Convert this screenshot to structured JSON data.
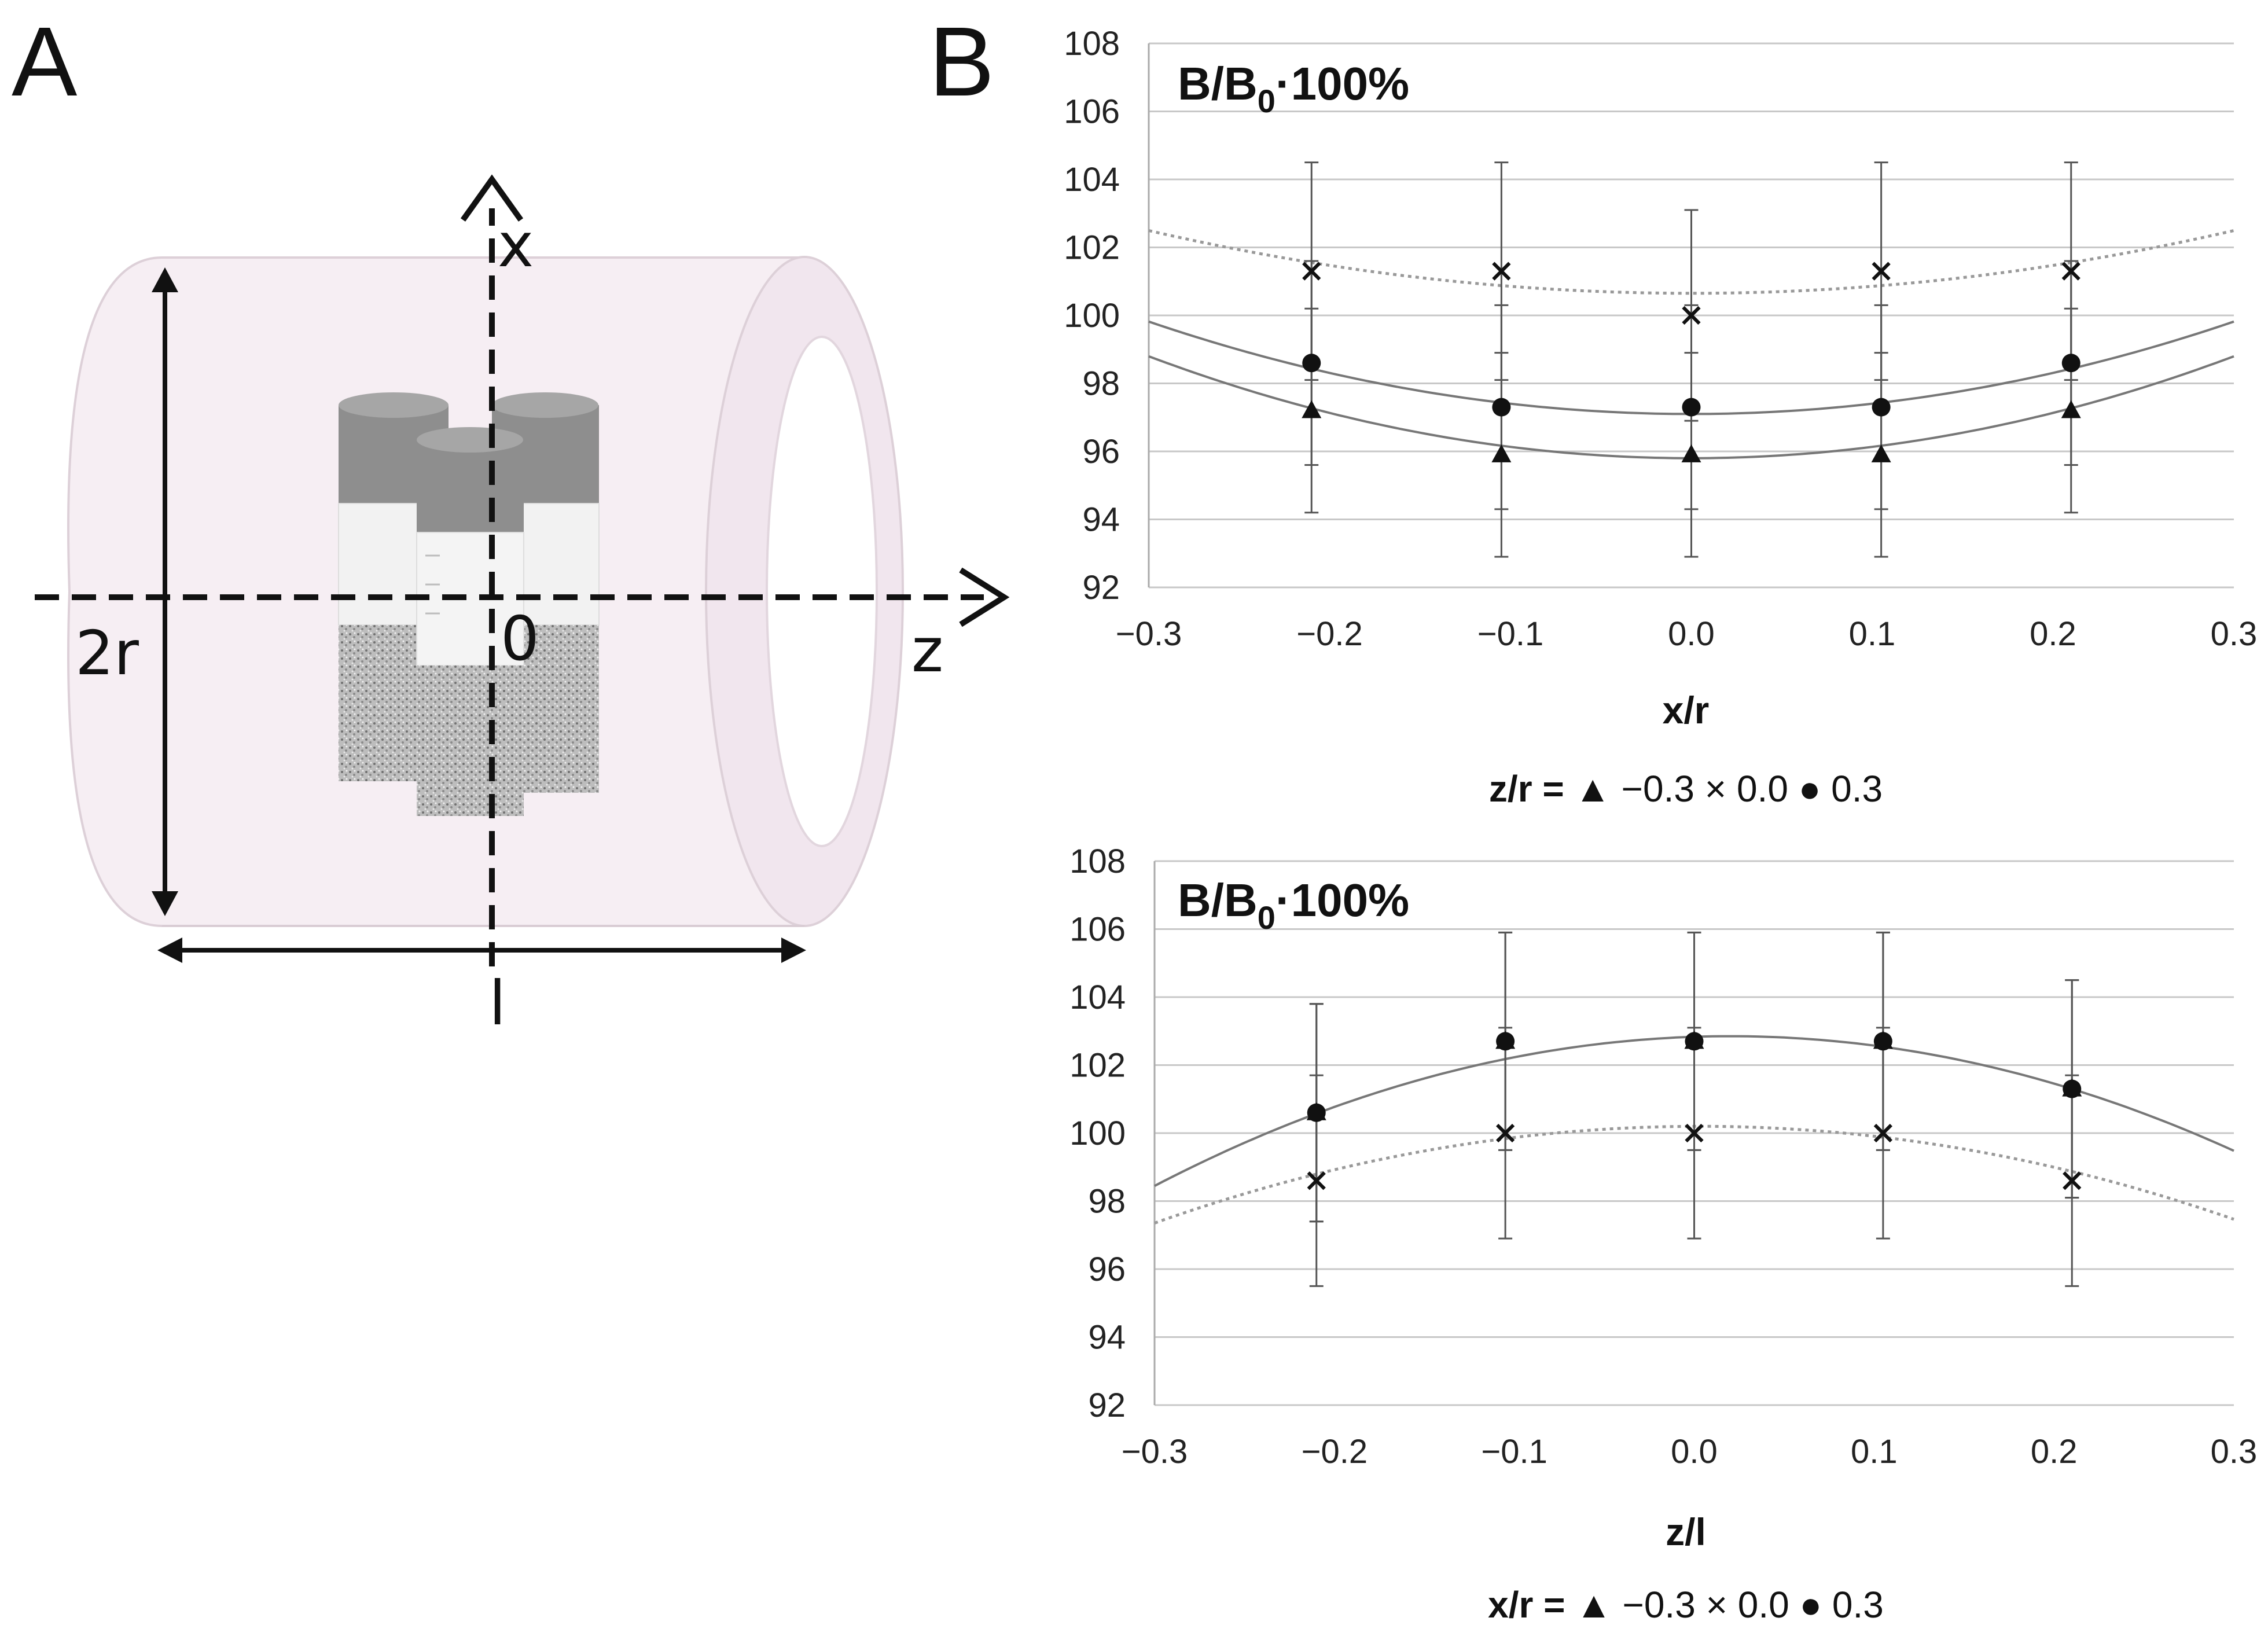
{
  "panels": {
    "a": {
      "letter": "A",
      "diagram": {
        "axis_x_label": "x",
        "axis_z_label": "z",
        "diameter_label": "2r",
        "origin_label": "0",
        "length_label": "l"
      }
    },
    "b": {
      "letter": "B"
    }
  },
  "colors": {
    "cylinder_fill": "#f6eef3",
    "cylinder_stroke": "#ddd0d8",
    "grid": "#c8c8c8",
    "axis": "#aaaaaa",
    "fit_solid": "#777777",
    "fit_dotted": "#999999",
    "marker": "#111111",
    "errorbar": "#555555"
  },
  "chart_data": [
    {
      "type": "scatter",
      "title": "",
      "ylabel_main": "B/B",
      "ylabel_sub": "0",
      "ylabel_suffix": "·100%",
      "xlabel": "x/r",
      "xlim": [
        -0.3,
        0.3
      ],
      "ylim": [
        92,
        108
      ],
      "y_ticks": [
        92,
        94,
        96,
        98,
        100,
        102,
        104,
        106,
        108
      ],
      "x_ticks": [
        "−0.3",
        "−0.2",
        "−0.1",
        "0.0",
        "0.1",
        "0.2",
        "0.3"
      ],
      "x_tick_values": [
        -0.3,
        -0.2,
        -0.1,
        0.0,
        0.1,
        0.2,
        0.3
      ],
      "grid": "horizontal",
      "legend_prefix": "z/r = ",
      "legend": [
        {
          "symbol": "▲",
          "label": "−0.3"
        },
        {
          "symbol": "×",
          "label": "0.0"
        },
        {
          "symbol": "●",
          "label": "0.3"
        }
      ],
      "series": [
        {
          "name": "−0.3",
          "marker": "triangle",
          "x": [
            -0.21,
            -0.105,
            0.0,
            0.105,
            0.21
          ],
          "y": [
            97.2,
            95.9,
            95.9,
            95.9,
            97.2
          ],
          "err": [
            3.0,
            3.0,
            3.0,
            3.0,
            3.0
          ],
          "fit": {
            "a": 33.3,
            "b": 0.0,
            "c": 95.8,
            "style": "solid"
          }
        },
        {
          "name": "0.0",
          "marker": "x",
          "x": [
            -0.21,
            -0.105,
            0.0,
            0.105,
            0.21
          ],
          "y": [
            101.3,
            101.3,
            100.0,
            101.3,
            101.3
          ],
          "err": [
            3.2,
            3.2,
            3.1,
            3.2,
            3.2
          ],
          "fit": {
            "a": 20.5,
            "b": 0.0,
            "c": 100.65,
            "style": "dotted"
          }
        },
        {
          "name": "0.3",
          "marker": "circle",
          "x": [
            -0.21,
            -0.105,
            0.0,
            0.105,
            0.21
          ],
          "y": [
            98.6,
            97.3,
            97.3,
            97.3,
            98.6
          ],
          "err": [
            3.0,
            3.0,
            3.0,
            3.0,
            3.0
          ],
          "fit": {
            "a": 30.2,
            "b": 0.0,
            "c": 97.1,
            "style": "solid"
          }
        }
      ]
    },
    {
      "type": "scatter",
      "title": "",
      "ylabel_main": "B/B",
      "ylabel_sub": "0",
      "ylabel_suffix": "·100%",
      "xlabel": "z/l",
      "xlim": [
        -0.3,
        0.3
      ],
      "ylim": [
        92,
        108
      ],
      "y_ticks": [
        92,
        94,
        96,
        98,
        100,
        102,
        104,
        106,
        108
      ],
      "x_ticks": [
        "−0.3",
        "−0.2",
        "−0.1",
        "0.0",
        "0.1",
        "0.2",
        "0.3"
      ],
      "x_tick_values": [
        -0.3,
        -0.2,
        -0.1,
        0.0,
        0.1,
        0.2,
        0.3
      ],
      "grid": "horizontal",
      "legend_prefix": "x/r = ",
      "legend": [
        {
          "symbol": "▲",
          "label": "−0.3"
        },
        {
          "symbol": "×",
          "label": "0.0"
        },
        {
          "symbol": "●",
          "label": "0.3"
        }
      ],
      "series": [
        {
          "name": "−0.3",
          "marker": "triangle",
          "x": [
            -0.21,
            -0.105,
            0.0,
            0.105,
            0.21
          ],
          "y": [
            100.6,
            102.7,
            102.7,
            102.7,
            101.3
          ],
          "err": [
            3.2,
            3.2,
            3.2,
            3.2,
            3.2
          ],
          "fit": {
            "a": -43.0,
            "b": 2.0,
            "c": 102.85,
            "style": "solid"
          }
        },
        {
          "name": "0.0",
          "marker": "x",
          "x": [
            -0.21,
            -0.105,
            0.0,
            0.105,
            0.21
          ],
          "y": [
            98.6,
            100.0,
            100.0,
            100.0,
            98.6
          ],
          "err": [
            3.1,
            3.1,
            3.1,
            3.1,
            3.1
          ],
          "fit": {
            "a": -31.0,
            "b": 0.3,
            "c": 100.2,
            "style": "dotted"
          }
        },
        {
          "name": "0.3",
          "marker": "circle",
          "x": [
            -0.21,
            -0.105,
            0.0,
            0.105,
            0.21
          ],
          "y": [
            100.6,
            102.7,
            102.7,
            102.7,
            101.3
          ],
          "err": [
            3.2,
            3.2,
            3.2,
            3.2,
            3.2
          ],
          "fit": null
        }
      ]
    }
  ]
}
